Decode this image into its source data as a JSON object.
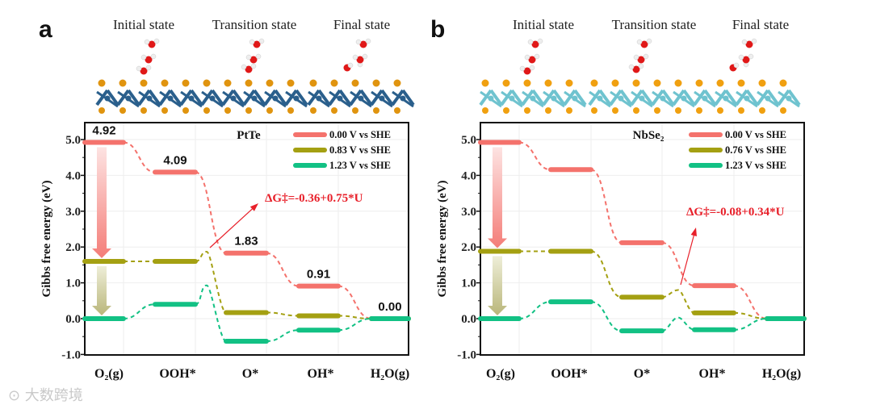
{
  "watermark": "大数跨境",
  "colors": {
    "red": "#f4726c",
    "olive": "#a4a012",
    "green": "#12c184",
    "annotation": "#e8202a"
  },
  "chart_data": [
    {
      "panel_letter": "a",
      "type": "line",
      "title": "PtTe",
      "state_titles": [
        "Initial state",
        "Transition state",
        "Final state"
      ],
      "xlabel": "",
      "ylabel": "Gibbs free energy (eV)",
      "categories": [
        "O₂(g)",
        "OOH*",
        "O*",
        "OH*",
        "H₂O(g)"
      ],
      "ylim": [
        -1.0,
        5.3
      ],
      "yticks": [
        "5.0",
        "4.0",
        "3.0",
        "2.0",
        "1.0",
        "0.0",
        "-1.0"
      ],
      "legend_position": "top-right",
      "series": [
        {
          "name": "0.00 V vs SHE",
          "color": "#f4726c",
          "values": [
            4.92,
            4.09,
            1.83,
            0.91,
            0.0
          ],
          "labels": [
            "4.92",
            "4.09",
            "1.83",
            "0.91",
            "0.00"
          ]
        },
        {
          "name": "0.83 V vs SHE",
          "color": "#a4a012",
          "values": [
            1.6,
            1.6,
            0.17,
            0.08,
            0.0
          ],
          "ts": {
            "after_index": 1,
            "value": 1.87
          }
        },
        {
          "name": "1.23 V vs SHE",
          "color": "#12c184",
          "values": [
            0.0,
            0.4,
            -0.63,
            -0.32,
            0.0
          ],
          "ts": {
            "after_index": 1,
            "value": 0.93
          }
        }
      ],
      "annotation": "ΔG‡=-0.36+0.75*U"
    },
    {
      "panel_letter": "b",
      "type": "line",
      "title": "NbSe₂",
      "state_titles": [
        "Initial state",
        "Transition state",
        "Final state"
      ],
      "xlabel": "",
      "ylabel": "Gibbs free energy (eV)",
      "categories": [
        "O₂(g)",
        "OOH*",
        "O*",
        "OH*",
        "H₂O(g)"
      ],
      "ylim": [
        -1.0,
        5.3
      ],
      "yticks": [
        "5.0",
        "4.0",
        "3.0",
        "2.0",
        "1.0",
        "0.0",
        "-1.0"
      ],
      "legend_position": "top-right",
      "series": [
        {
          "name": "0.00 V vs SHE",
          "color": "#f4726c",
          "values": [
            4.92,
            4.16,
            2.12,
            0.92,
            0.0
          ]
        },
        {
          "name": "0.76 V vs SHE",
          "color": "#a4a012",
          "values": [
            1.88,
            1.88,
            0.6,
            0.16,
            0.0
          ],
          "ts": {
            "after_index": 2,
            "value": 0.8
          }
        },
        {
          "name": "1.23 V vs SHE",
          "color": "#12c184",
          "values": [
            0.0,
            0.47,
            -0.34,
            -0.31,
            0.0
          ],
          "ts": {
            "after_index": 2,
            "value": 0.03
          }
        }
      ],
      "annotation": "ΔG‡=-0.08+0.34*U"
    }
  ]
}
